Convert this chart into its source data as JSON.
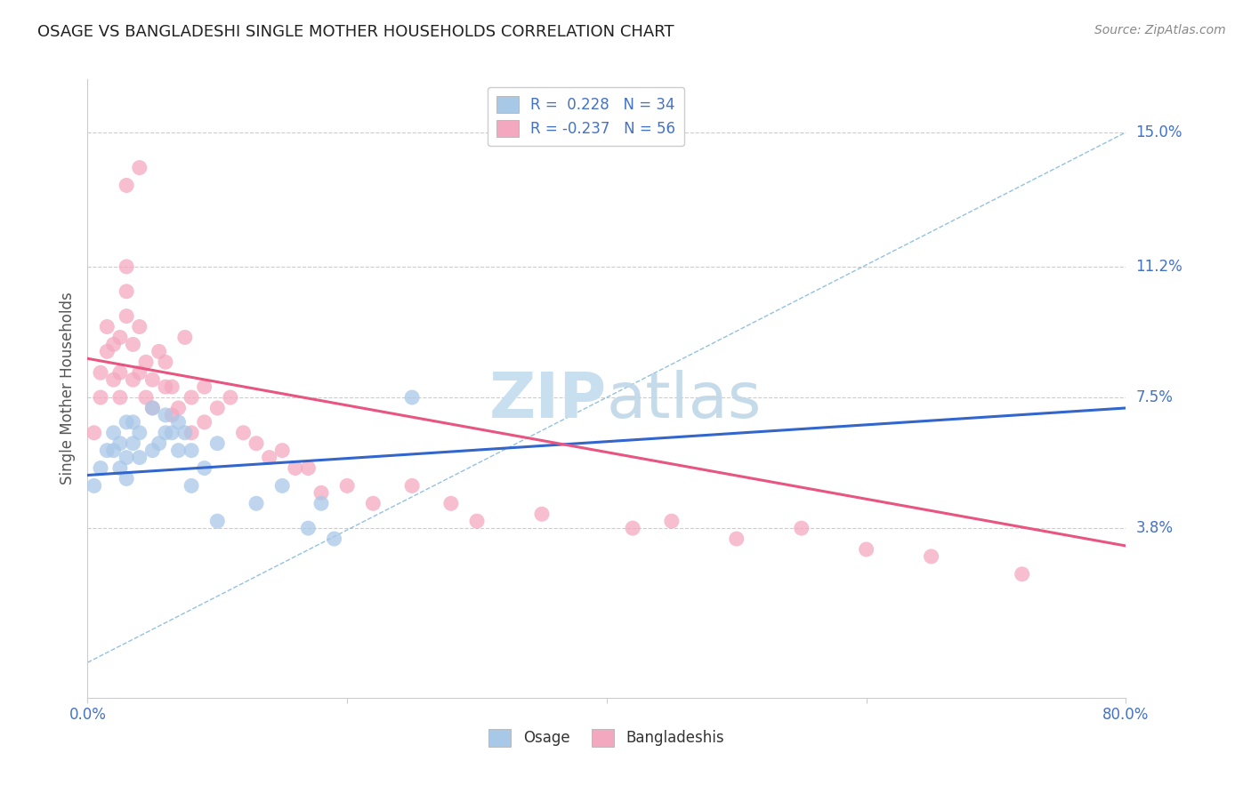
{
  "title": "OSAGE VS BANGLADESHI SINGLE MOTHER HOUSEHOLDS CORRELATION CHART",
  "source": "Source: ZipAtlas.com",
  "ylabel": "Single Mother Households",
  "yticks": [
    0.038,
    0.075,
    0.112,
    0.15
  ],
  "ytick_labels": [
    "3.8%",
    "7.5%",
    "11.2%",
    "15.0%"
  ],
  "xlim": [
    0.0,
    0.8
  ],
  "ylim": [
    -0.01,
    0.165
  ],
  "legend_r_osage": "0.228",
  "legend_n_osage": "34",
  "legend_r_bangladeshi": "-0.237",
  "legend_n_bangladeshi": "56",
  "osage_color": "#a8c8e8",
  "bangladeshi_color": "#f4a8c0",
  "trend_osage_color": "#3366cc",
  "trend_bangladeshi_color": "#e85580",
  "diag_line_color": "#88bbdd",
  "background_color": "#ffffff",
  "watermark_color": "#c8dff0",
  "osage_trend_x0": 0.0,
  "osage_trend_y0": 0.053,
  "osage_trend_x1": 0.8,
  "osage_trend_y1": 0.072,
  "bangladeshi_trend_x0": 0.0,
  "bangladeshi_trend_y0": 0.086,
  "bangladeshi_trend_x1": 0.8,
  "bangladeshi_trend_y1": 0.033,
  "osage_x": [
    0.005,
    0.01,
    0.015,
    0.02,
    0.02,
    0.025,
    0.025,
    0.03,
    0.03,
    0.03,
    0.035,
    0.035,
    0.04,
    0.04,
    0.05,
    0.05,
    0.055,
    0.06,
    0.06,
    0.065,
    0.07,
    0.07,
    0.075,
    0.08,
    0.08,
    0.09,
    0.1,
    0.1,
    0.13,
    0.15,
    0.17,
    0.18,
    0.19,
    0.25
  ],
  "osage_y": [
    0.05,
    0.055,
    0.06,
    0.065,
    0.06,
    0.062,
    0.055,
    0.068,
    0.058,
    0.052,
    0.062,
    0.068,
    0.065,
    0.058,
    0.072,
    0.06,
    0.062,
    0.065,
    0.07,
    0.065,
    0.068,
    0.06,
    0.065,
    0.06,
    0.05,
    0.055,
    0.062,
    0.04,
    0.045,
    0.05,
    0.038,
    0.045,
    0.035,
    0.075
  ],
  "bangladeshi_x": [
    0.005,
    0.01,
    0.01,
    0.015,
    0.015,
    0.02,
    0.02,
    0.025,
    0.025,
    0.025,
    0.03,
    0.03,
    0.03,
    0.03,
    0.035,
    0.035,
    0.04,
    0.04,
    0.04,
    0.045,
    0.045,
    0.05,
    0.05,
    0.055,
    0.06,
    0.06,
    0.065,
    0.065,
    0.07,
    0.075,
    0.08,
    0.08,
    0.09,
    0.09,
    0.1,
    0.11,
    0.12,
    0.13,
    0.14,
    0.15,
    0.16,
    0.17,
    0.18,
    0.2,
    0.22,
    0.25,
    0.28,
    0.3,
    0.35,
    0.42,
    0.45,
    0.5,
    0.55,
    0.6,
    0.65,
    0.72
  ],
  "bangladeshi_y": [
    0.065,
    0.075,
    0.082,
    0.088,
    0.095,
    0.08,
    0.09,
    0.075,
    0.082,
    0.092,
    0.098,
    0.105,
    0.112,
    0.135,
    0.08,
    0.09,
    0.082,
    0.095,
    0.14,
    0.075,
    0.085,
    0.072,
    0.08,
    0.088,
    0.078,
    0.085,
    0.07,
    0.078,
    0.072,
    0.092,
    0.065,
    0.075,
    0.068,
    0.078,
    0.072,
    0.075,
    0.065,
    0.062,
    0.058,
    0.06,
    0.055,
    0.055,
    0.048,
    0.05,
    0.045,
    0.05,
    0.045,
    0.04,
    0.042,
    0.038,
    0.04,
    0.035,
    0.038,
    0.032,
    0.03,
    0.025
  ]
}
